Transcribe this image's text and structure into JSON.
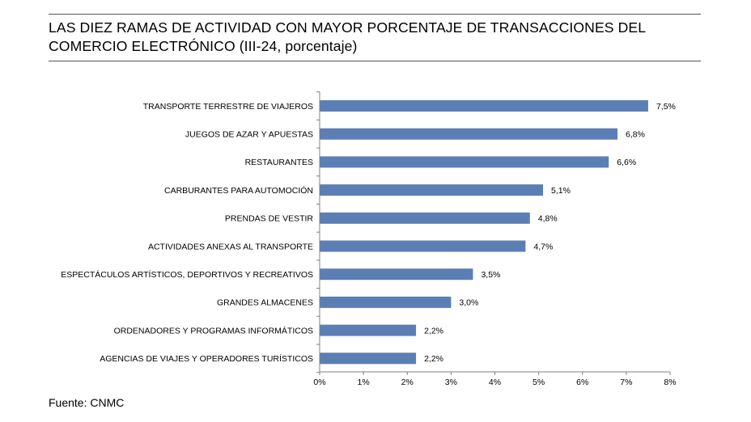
{
  "title": {
    "line1": "LAS DIEZ RAMAS DE ACTIVIDAD CON MAYOR PORCENTAJE DE TRANSACCIONES DEL",
    "line2": "COMERCIO ELECTRÓNICO (III-24, porcentaje)"
  },
  "source": "Fuente: CNMC",
  "chart_data": {
    "type": "bar",
    "orientation": "horizontal",
    "title": "LAS DIEZ RAMAS DE ACTIVIDAD CON MAYOR PORCENTAJE DE TRANSACCIONES DEL COMERCIO ELECTRÓNICO (III-24, porcentaje)",
    "categories": [
      "TRANSPORTE TERRESTRE DE VIAJEROS",
      "JUEGOS DE AZAR Y APUESTAS",
      "RESTAURANTES",
      "CARBURANTES PARA AUTOMOCIÓN",
      "PRENDAS DE VESTIR",
      "ACTIVIDADES ANEXAS AL TRANSPORTE",
      "ESPECTÁCULOS ARTÍSTICOS, DEPORTIVOS Y RECREATIVOS",
      "GRANDES ALMACENES",
      "ORDENADORES Y PROGRAMAS INFORMÁTICOS",
      "AGENCIAS DE VIAJES Y OPERADORES TURÍSTICOS"
    ],
    "values": [
      7.5,
      6.8,
      6.6,
      5.1,
      4.8,
      4.7,
      3.5,
      3.0,
      2.2,
      2.2
    ],
    "value_labels": [
      "7,5%",
      "6,8%",
      "6,6%",
      "5,1%",
      "4,8%",
      "4,7%",
      "3,5%",
      "3,0%",
      "2,2%",
      "2,2%"
    ],
    "xlim": [
      0,
      8
    ],
    "xticks": [
      0,
      1,
      2,
      3,
      4,
      5,
      6,
      7,
      8
    ],
    "xtick_labels": [
      "0%",
      "1%",
      "2%",
      "3%",
      "4%",
      "5%",
      "6%",
      "7%",
      "8%"
    ],
    "xlabel": "",
    "ylabel": "",
    "grid": false,
    "legend": "none",
    "bar_color": "#5b7fb5"
  }
}
